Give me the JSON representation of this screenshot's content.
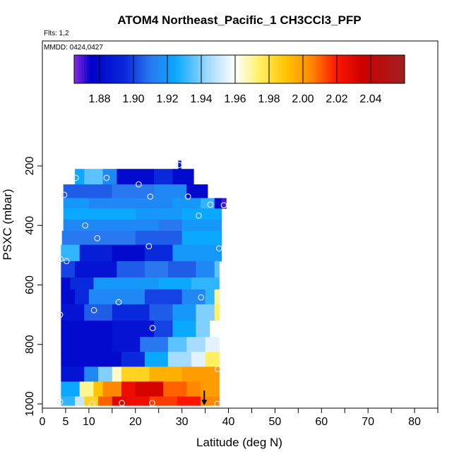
{
  "chart_data": {
    "type": "heatmap",
    "title": "ATOM4 Northeast_Pacific_1 CH3CCl3_PFP",
    "flights_label": "Flts: 1,2",
    "dates_label": "MMDD: 0424,0427",
    "xlabel": "Latitude (deg N)",
    "ylabel": "PSXC (mbar)",
    "xlim": [
      0,
      85
    ],
    "ylim": [
      1000,
      100
    ],
    "x_ticks": [
      0,
      5,
      10,
      20,
      30,
      40,
      50,
      60,
      70,
      80
    ],
    "y_ticks": [
      200,
      400,
      600,
      800,
      1000
    ],
    "colorbar": {
      "min": 1.865,
      "max": 2.06,
      "ticks": [
        1.88,
        1.9,
        1.92,
        1.94,
        1.96,
        1.98,
        2.0,
        2.02,
        2.04
      ],
      "tick_labels": [
        "1.88",
        "1.90",
        "1.92",
        "1.94",
        "1.96",
        "1.98",
        "2.00",
        "2.02",
        "2.04"
      ],
      "stops": [
        {
          "v": 1.865,
          "color": "#8a2be2"
        },
        {
          "v": 1.875,
          "color": "#0000c8"
        },
        {
          "v": 1.895,
          "color": "#0a28dc"
        },
        {
          "v": 1.91,
          "color": "#2a78f0"
        },
        {
          "v": 1.925,
          "color": "#0aa8ff"
        },
        {
          "v": 1.945,
          "color": "#a8dcff"
        },
        {
          "v": 1.96,
          "color": "#ffffff"
        },
        {
          "v": 1.975,
          "color": "#fff060"
        },
        {
          "v": 1.99,
          "color": "#ffc400"
        },
        {
          "v": 2.005,
          "color": "#ff8800"
        },
        {
          "v": 2.02,
          "color": "#ff1400"
        },
        {
          "v": 2.035,
          "color": "#cc0000"
        },
        {
          "v": 2.06,
          "color": "#a02020"
        }
      ]
    },
    "rows": [
      {
        "p_top": 182,
        "p_bot": 210,
        "segments": [
          [
            29.2,
            29.8,
            1.885
          ]
        ]
      },
      {
        "p_top": 210,
        "p_bot": 262,
        "segments": [
          [
            7.0,
            9.0,
            1.925
          ],
          [
            9.0,
            13.0,
            1.935
          ],
          [
            13.0,
            16.0,
            1.915
          ],
          [
            16.0,
            24.0,
            1.88
          ],
          [
            24.0,
            28.0,
            1.895
          ],
          [
            28.0,
            32.5,
            1.88
          ]
        ]
      },
      {
        "p_top": 262,
        "p_bot": 308,
        "segments": [
          [
            4.5,
            15.0,
            1.905
          ],
          [
            15.0,
            24.0,
            1.91
          ],
          [
            24.0,
            31.0,
            1.915
          ],
          [
            31.0,
            35.5,
            1.88
          ]
        ]
      },
      {
        "p_top": 308,
        "p_bot": 343,
        "segments": [
          [
            4.5,
            10.0,
            1.92
          ],
          [
            10.0,
            28.0,
            1.915
          ],
          [
            28.0,
            34.0,
            1.92
          ],
          [
            34.0,
            37.0,
            1.93
          ],
          [
            37.0,
            38.5,
            1.88
          ],
          [
            38.5,
            39.5,
            1.87
          ]
        ]
      },
      {
        "p_top": 343,
        "p_bot": 380,
        "segments": [
          [
            4.5,
            20.0,
            1.925
          ],
          [
            20.0,
            30.0,
            1.92
          ],
          [
            30.0,
            38.5,
            1.925
          ]
        ]
      },
      {
        "p_top": 380,
        "p_bot": 418,
        "segments": [
          [
            4.5,
            25.0,
            1.915
          ],
          [
            25.0,
            30.0,
            1.91
          ],
          [
            30.0,
            38.5,
            1.92
          ]
        ]
      },
      {
        "p_top": 418,
        "p_bot": 465,
        "segments": [
          [
            4.2,
            20.0,
            1.91
          ],
          [
            20.0,
            30.0,
            1.905
          ],
          [
            30.0,
            38.5,
            1.925
          ]
        ]
      },
      {
        "p_top": 465,
        "p_bot": 520,
        "segments": [
          [
            4.0,
            8.0,
            1.93
          ],
          [
            8.0,
            15.0,
            1.89
          ],
          [
            15.0,
            22.0,
            1.88
          ],
          [
            22.0,
            28.0,
            1.895
          ],
          [
            28.0,
            38.5,
            1.92
          ]
        ]
      },
      {
        "p_top": 520,
        "p_bot": 575,
        "segments": [
          [
            4.0,
            7.0,
            1.9
          ],
          [
            7.0,
            16.0,
            1.885
          ],
          [
            16.0,
            22.0,
            1.905
          ],
          [
            22.0,
            27.0,
            1.91
          ],
          [
            27.0,
            33.0,
            1.905
          ],
          [
            33.0,
            37.0,
            1.915
          ],
          [
            37.0,
            38.0,
            1.935
          ]
        ]
      },
      {
        "p_top": 575,
        "p_bot": 615,
        "segments": [
          [
            4.0,
            6.0,
            1.88
          ],
          [
            6.0,
            11.0,
            1.895
          ],
          [
            11.0,
            25.0,
            1.92
          ],
          [
            25.0,
            32.0,
            1.925
          ],
          [
            32.0,
            38.0,
            1.93
          ]
        ]
      },
      {
        "p_top": 615,
        "p_bot": 665,
        "segments": [
          [
            4.0,
            7.0,
            1.88
          ],
          [
            7.0,
            10.0,
            1.895
          ],
          [
            10.0,
            22.0,
            1.915
          ],
          [
            22.0,
            30.0,
            1.9
          ],
          [
            30.0,
            35.0,
            1.915
          ],
          [
            35.0,
            37.0,
            1.93
          ],
          [
            37.0,
            38.0,
            1.97
          ]
        ]
      },
      {
        "p_top": 665,
        "p_bot": 720,
        "segments": [
          [
            4.0,
            9.0,
            1.885
          ],
          [
            9.0,
            15.0,
            1.905
          ],
          [
            15.0,
            23.0,
            1.895
          ],
          [
            23.0,
            28.0,
            1.905
          ],
          [
            28.0,
            33.0,
            1.92
          ],
          [
            33.0,
            37.0,
            1.94
          ],
          [
            37.0,
            38.0,
            1.975
          ]
        ]
      },
      {
        "p_top": 720,
        "p_bot": 775,
        "segments": [
          [
            4.0,
            15.0,
            1.88
          ],
          [
            15.0,
            24.0,
            1.885
          ],
          [
            24.0,
            28.0,
            1.9
          ],
          [
            28.0,
            33.0,
            1.925
          ],
          [
            33.0,
            36.0,
            1.94
          ],
          [
            36.0,
            38.0,
            1.96
          ]
        ]
      },
      {
        "p_top": 775,
        "p_bot": 825,
        "segments": [
          [
            4.0,
            15.0,
            1.88
          ],
          [
            15.0,
            21.0,
            1.885
          ],
          [
            21.0,
            27.0,
            1.91
          ],
          [
            27.0,
            31.0,
            1.935
          ],
          [
            31.0,
            35.0,
            1.945
          ],
          [
            35.0,
            38.0,
            1.955
          ]
        ]
      },
      {
        "p_top": 825,
        "p_bot": 875,
        "segments": [
          [
            4.0,
            17.0,
            1.88
          ],
          [
            17.0,
            22.0,
            1.895
          ],
          [
            22.0,
            27.0,
            1.925
          ],
          [
            27.0,
            32.0,
            1.945
          ],
          [
            32.0,
            35.0,
            1.955
          ],
          [
            35.0,
            38.0,
            1.975
          ]
        ]
      },
      {
        "p_top": 875,
        "p_bot": 925,
        "segments": [
          [
            4.0,
            9.0,
            1.885
          ],
          [
            9.0,
            12.0,
            1.915
          ],
          [
            12.0,
            15.0,
            1.94
          ],
          [
            15.0,
            17.0,
            1.965
          ],
          [
            17.0,
            23.0,
            1.985
          ],
          [
            23.0,
            30.0,
            1.995
          ],
          [
            30.0,
            38.0,
            2.0
          ]
        ]
      },
      {
        "p_top": 925,
        "p_bot": 975,
        "segments": [
          [
            4.0,
            8.0,
            1.925
          ],
          [
            8.0,
            11.0,
            1.97
          ],
          [
            11.0,
            13.0,
            1.99
          ],
          [
            13.0,
            17.0,
            2.005
          ],
          [
            17.0,
            20.0,
            2.025
          ],
          [
            20.0,
            26.0,
            2.032
          ],
          [
            26.0,
            31.0,
            2.01
          ],
          [
            31.0,
            34.0,
            2.005
          ],
          [
            34.0,
            38.0,
            2.0
          ]
        ]
      },
      {
        "p_top": 975,
        "p_bot": 1005,
        "segments": [
          [
            4.0,
            7.0,
            1.93
          ],
          [
            7.0,
            9.0,
            1.95
          ],
          [
            9.0,
            12.0,
            1.985
          ],
          [
            12.0,
            15.0,
            2.01
          ],
          [
            15.0,
            18.0,
            2.03
          ],
          [
            18.0,
            23.0,
            2.025
          ],
          [
            23.0,
            29.0,
            2.015
          ],
          [
            29.0,
            34.0,
            2.02
          ],
          [
            34.0,
            38.0,
            2.005
          ]
        ]
      }
    ],
    "sample_points": [
      [
        29.4,
        197
      ],
      [
        7.2,
        240
      ],
      [
        13.8,
        240
      ],
      [
        20.7,
        262
      ],
      [
        4.7,
        297
      ],
      [
        23.2,
        303
      ],
      [
        31.3,
        303
      ],
      [
        36.1,
        330
      ],
      [
        39.0,
        332
      ],
      [
        33.6,
        367
      ],
      [
        9.2,
        400
      ],
      [
        11.8,
        443
      ],
      [
        22.9,
        470
      ],
      [
        38.0,
        477
      ],
      [
        3.9,
        513
      ],
      [
        5.2,
        520
      ],
      [
        34.1,
        642
      ],
      [
        16.4,
        658
      ],
      [
        11.1,
        685
      ],
      [
        3.8,
        700
      ],
      [
        23.7,
        745
      ],
      [
        37.7,
        883
      ],
      [
        3.8,
        993
      ],
      [
        17.1,
        997
      ],
      [
        23.6,
        997
      ],
      [
        10.7,
        1000
      ],
      [
        37.6,
        1000
      ]
    ],
    "arrow": {
      "x": 34.8,
      "p_from": 955,
      "p_to": 1005
    }
  }
}
